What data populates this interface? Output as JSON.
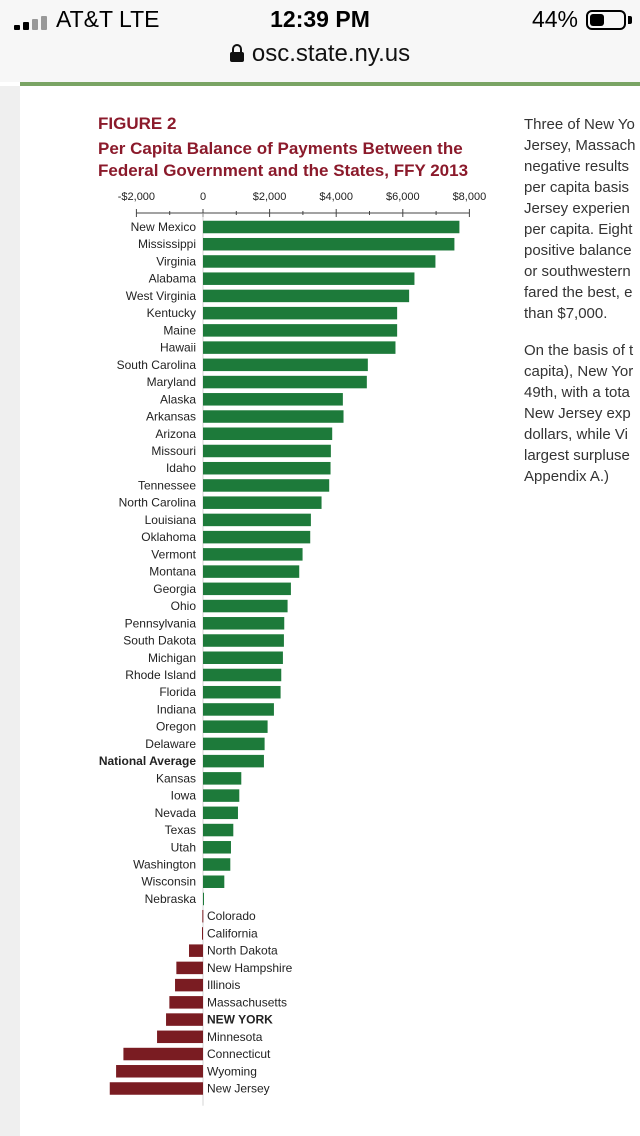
{
  "status_bar": {
    "carrier": "AT&T  LTE",
    "time": "12:39 PM",
    "battery": "44%",
    "battery_level": 0.44
  },
  "browser": {
    "url": "osc.state.ny.us"
  },
  "figure": {
    "number": "FIGURE 2",
    "title_line1": "Per Capita Balance of Payments Between the",
    "title_line2": "Federal Government and the States, FFY 2013"
  },
  "body_text": {
    "para1": [
      "Three of New Yo",
      "Jersey, Massach",
      "negative results",
      "per capita basis",
      "Jersey experien",
      "per capita. Eight",
      "positive balance",
      "or southwestern",
      "fared the best, e",
      "than $7,000."
    ],
    "para2": [
      "On the basis of t",
      "capita), New Yor",
      "49th, with a tota",
      "New Jersey exp",
      "dollars, while Vi",
      "largest surpluse",
      "Appendix A.)"
    ]
  },
  "colors": {
    "positive": "#1d7a3a",
    "negative": "#7a1c22",
    "title": "#8b1a2b"
  },
  "chart_data": {
    "type": "bar",
    "orientation": "horizontal",
    "title": "Per Capita Balance of Payments Between the Federal Government and the States, FFY 2013",
    "xlim": [
      -2000,
      8000
    ],
    "xticks": [
      -2000,
      0,
      2000,
      4000,
      6000,
      8000
    ],
    "xtick_labels": [
      "-$2,000",
      "0",
      "$2,000",
      "$4,000",
      "$6,000",
      "$8,000"
    ],
    "categories": [
      "New Mexico",
      "Mississippi",
      "Virginia",
      "Alabama",
      "West Virginia",
      "Kentucky",
      "Maine",
      "Hawaii",
      "South Carolina",
      "Maryland",
      "Alaska",
      "Arkansas",
      "Arizona",
      "Missouri",
      "Idaho",
      "Tennessee",
      "North Carolina",
      "Louisiana",
      "Oklahoma",
      "Vermont",
      "Montana",
      "Georgia",
      "Ohio",
      "Pennsylvania",
      "South Dakota",
      "Michigan",
      "Rhode Island",
      "Florida",
      "Indiana",
      "Oregon",
      "Delaware",
      "National Average",
      "Kansas",
      "Iowa",
      "Nevada",
      "Texas",
      "Utah",
      "Washington",
      "Wisconsin",
      "Nebraska",
      "Colorado",
      "California",
      "North Dakota",
      "New Hampshire",
      "Illinois",
      "Massachusetts",
      "NEW YORK",
      "Minnesota",
      "Connecticut",
      "Wyoming",
      "New Jersey"
    ],
    "values": [
      7700,
      7550,
      6980,
      6350,
      6190,
      5830,
      5830,
      5780,
      4950,
      4920,
      4200,
      4220,
      3880,
      3840,
      3830,
      3790,
      3560,
      3240,
      3220,
      2990,
      2890,
      2640,
      2540,
      2440,
      2430,
      2400,
      2350,
      2330,
      2130,
      1940,
      1850,
      1830,
      1150,
      1090,
      1050,
      910,
      840,
      820,
      640,
      10,
      -20,
      -30,
      -420,
      -800,
      -840,
      -1010,
      -1110,
      -1380,
      -2390,
      -2610,
      -2800
    ],
    "highlighted": [
      "National Average",
      "NEW YORK"
    ],
    "grid": false
  }
}
